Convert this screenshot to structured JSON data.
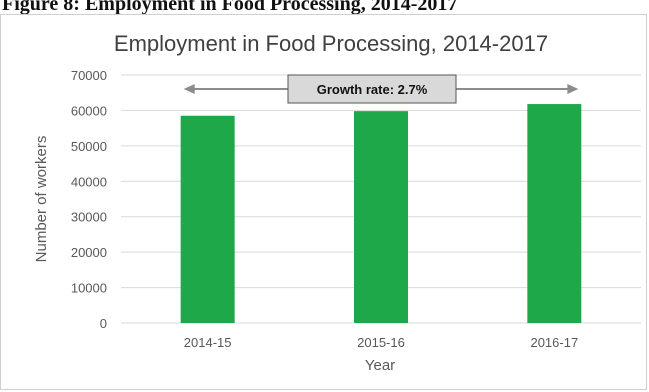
{
  "caption": "Figure 8: Employment in Food Processing, 2014-2017",
  "colors": {
    "bar": "#1fa84a",
    "grid": "#d9d9d9",
    "axis_text": "#595959",
    "arrow": "#8c8c8c",
    "callout_fill": "#d9d9d9",
    "callout_border": "#555555"
  },
  "chart_data": {
    "type": "bar",
    "title": "Employment in Food Processing, 2014-2017",
    "xlabel": "Year",
    "ylabel": "Number of workers",
    "categories": [
      "2014-15",
      "2015-16",
      "2016-17"
    ],
    "values": [
      58500,
      59800,
      61800
    ],
    "ylim": [
      0,
      70000
    ],
    "yticks": [
      "0",
      "10000",
      "20000",
      "30000",
      "40000",
      "50000",
      "60000",
      "70000"
    ],
    "grid": true,
    "legend": "none",
    "annotation": "Growth rate: 2.7%"
  }
}
